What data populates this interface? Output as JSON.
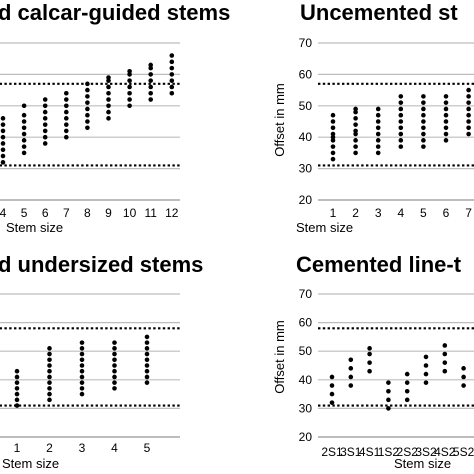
{
  "colors": {
    "points": "#000000",
    "grid": "#bdbdbd",
    "reference": "#000000"
  },
  "chart_data": [
    {
      "type": "scatter",
      "title": "d calcar-guided stems",
      "xlabel": "Stem size",
      "ylabel": "",
      "ylim": [
        20,
        70
      ],
      "yticks": [],
      "reference_lines": [
        31,
        57
      ],
      "grid": true,
      "categories": [
        "4",
        "5",
        "6",
        "7",
        "8",
        "9",
        "10",
        "11",
        "12"
      ],
      "columns": [
        [
          32,
          34,
          36,
          38,
          40,
          42,
          44,
          46
        ],
        [
          35,
          37,
          39,
          41,
          43,
          45,
          47,
          50
        ],
        [
          38,
          40,
          42,
          44,
          46,
          48,
          50,
          52
        ],
        [
          40,
          42,
          44,
          46,
          48,
          50,
          52,
          54
        ],
        [
          43,
          45,
          47,
          49,
          51,
          53,
          55,
          57
        ],
        [
          46,
          48,
          50,
          52,
          54,
          56,
          58,
          59
        ],
        [
          50,
          52,
          54,
          56,
          58,
          60,
          61
        ],
        [
          52,
          54,
          56,
          58,
          60,
          62,
          63
        ],
        [
          54,
          56,
          58,
          60,
          62,
          64,
          66
        ]
      ]
    },
    {
      "type": "scatter",
      "title": "Uncemented st",
      "xlabel": "Stem size",
      "ylabel": "Offset in mm",
      "ylim": [
        20,
        70
      ],
      "yticks": [
        20,
        30,
        40,
        50,
        60,
        70
      ],
      "reference_lines": [
        31,
        57
      ],
      "grid": true,
      "categories": [
        "1",
        "2",
        "3",
        "4",
        "5",
        "6",
        "7"
      ],
      "columns": [
        [
          33,
          35,
          37,
          39,
          40,
          41,
          43,
          45,
          47
        ],
        [
          35,
          37,
          39,
          41,
          42,
          44,
          46,
          48,
          49
        ],
        [
          35,
          37,
          39,
          41,
          43,
          45,
          47,
          49
        ],
        [
          37,
          39,
          41,
          43,
          45,
          47,
          49,
          51,
          53
        ],
        [
          37,
          39,
          41,
          43,
          45,
          47,
          49,
          51,
          53
        ],
        [
          39,
          41,
          43,
          45,
          47,
          49,
          51,
          53
        ],
        [
          41,
          43,
          45,
          47,
          49,
          51,
          53,
          55
        ]
      ]
    },
    {
      "type": "scatter",
      "title": "d undersized stems",
      "xlabel": "Stem size",
      "ylabel": "",
      "ylim": [
        20,
        70
      ],
      "yticks": [],
      "reference_lines": [
        31,
        58
      ],
      "grid": true,
      "categories": [
        "1",
        "2",
        "3",
        "4",
        "5"
      ],
      "columns": [
        [
          31,
          33,
          35,
          37,
          39,
          41,
          43
        ],
        [
          33,
          35,
          37,
          39,
          41,
          43,
          45,
          47,
          49,
          51
        ],
        [
          35,
          37,
          39,
          41,
          43,
          45,
          47,
          49,
          51,
          53
        ],
        [
          37,
          39,
          41,
          43,
          45,
          47,
          49,
          51,
          53
        ],
        [
          39,
          41,
          43,
          45,
          47,
          49,
          51,
          53,
          55
        ]
      ]
    },
    {
      "type": "scatter",
      "title": "Cemented line-t",
      "xlabel": "Stem size",
      "ylabel": "Offset in mm",
      "ylim": [
        20,
        70
      ],
      "yticks": [
        20,
        30,
        40,
        50,
        60,
        70
      ],
      "reference_lines": [
        31,
        58
      ],
      "grid": true,
      "categories": [
        "2S1",
        "3S1",
        "4S1",
        "1S2",
        "2S2",
        "3S2",
        "4S2",
        "5S2"
      ],
      "columns": [
        [
          32,
          35,
          38,
          41
        ],
        [
          38,
          41,
          44,
          47
        ],
        [
          43,
          46,
          49,
          51
        ],
        [
          30,
          33,
          36,
          39
        ],
        [
          33,
          36,
          39,
          42
        ],
        [
          39,
          42,
          45,
          48
        ],
        [
          43,
          46,
          49,
          52
        ],
        [
          38,
          41,
          44
        ]
      ]
    }
  ]
}
